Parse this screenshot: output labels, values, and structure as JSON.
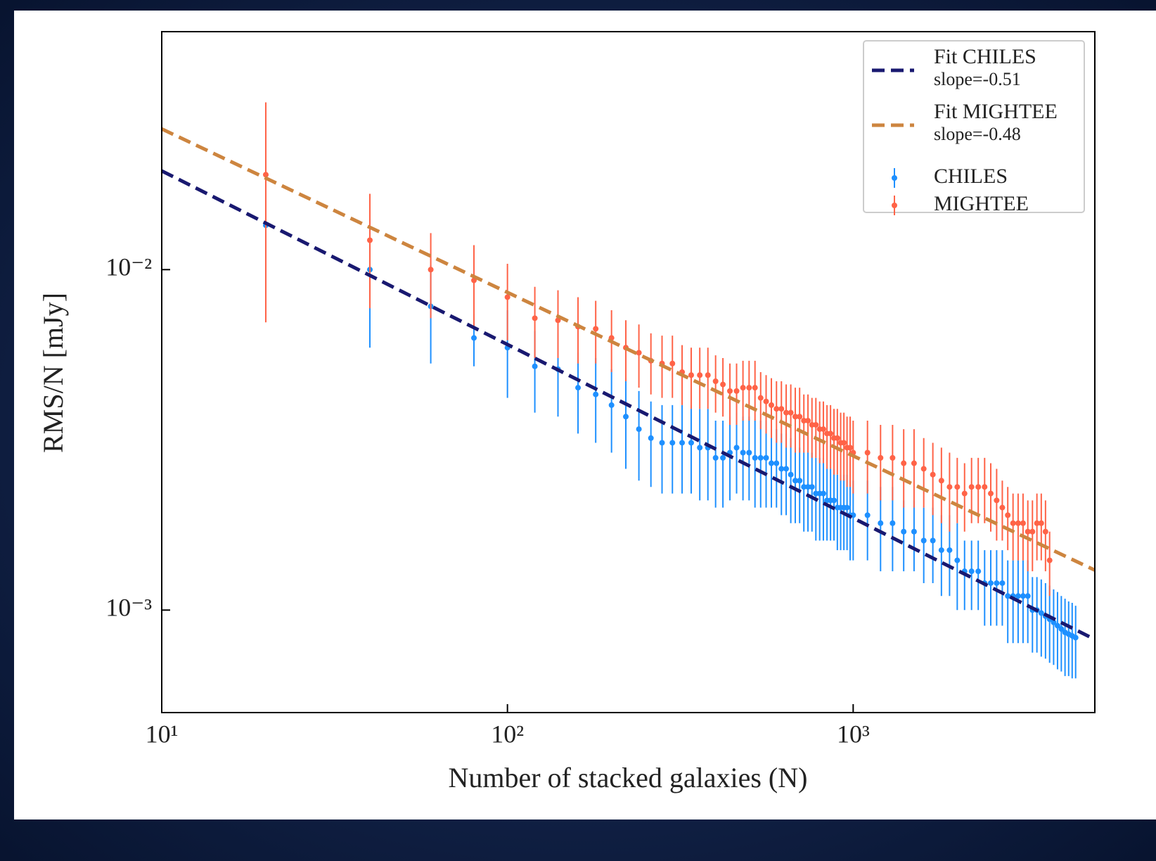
{
  "chart_data": {
    "type": "errorbar",
    "xlabel": "Number of stacked galaxies (N)",
    "ylabel": "RMS/N [mJy]",
    "xscale": "log",
    "yscale": "log",
    "xlim": [
      10,
      5000
    ],
    "ylim": [
      0.0005,
      0.05
    ],
    "xticks": [
      {
        "value": 10,
        "label": "10¹"
      },
      {
        "value": 100,
        "label": "10²"
      },
      {
        "value": 1000,
        "label": "10³"
      }
    ],
    "yticks": [
      {
        "value": 0.001,
        "label": "10⁻³"
      },
      {
        "value": 0.01,
        "label": "10⁻²"
      }
    ],
    "legend": "upper right",
    "fits": [
      {
        "name": "Fit CHILES",
        "subtext": "slope=-0.51",
        "color": "#191970",
        "x": [
          10,
          5000
        ],
        "values": [
          0.0195,
          0.00082
        ]
      },
      {
        "name": "Fit MIGHTEE",
        "subtext": "slope=-0.48",
        "color": "#cd853f",
        "x": [
          10,
          5000
        ],
        "values": [
          0.0259,
          0.00131
        ]
      }
    ],
    "series": [
      {
        "name": "CHILES",
        "color": "#1e90ff",
        "x": [
          20,
          40,
          60,
          80,
          100,
          120,
          140,
          160,
          180,
          200,
          220,
          240,
          260,
          280,
          300,
          320,
          340,
          360,
          380,
          400,
          420,
          440,
          460,
          480,
          500,
          520,
          540,
          560,
          580,
          600,
          620,
          640,
          660,
          680,
          700,
          720,
          740,
          760,
          780,
          800,
          820,
          840,
          860,
          880,
          900,
          920,
          940,
          960,
          980,
          1000,
          1100,
          1200,
          1300,
          1400,
          1500,
          1600,
          1700,
          1800,
          1900,
          2000,
          2100,
          2200,
          2300,
          2400,
          2500,
          2600,
          2700,
          2800,
          2900,
          3000,
          3100,
          3200,
          3300,
          3400,
          3500,
          3600,
          3700,
          3800,
          3900,
          4000,
          4100,
          4200,
          4300,
          4400
        ],
        "values": [
          0.0135,
          0.01,
          0.0078,
          0.0063,
          0.0059,
          0.0052,
          0.0051,
          0.0045,
          0.0043,
          0.004,
          0.0037,
          0.0034,
          0.0032,
          0.0031,
          0.0031,
          0.0031,
          0.0031,
          0.003,
          0.003,
          0.0028,
          0.0028,
          0.0029,
          0.003,
          0.0029,
          0.0029,
          0.0028,
          0.0028,
          0.0028,
          0.0027,
          0.0027,
          0.0026,
          0.0026,
          0.0025,
          0.0024,
          0.0024,
          0.0023,
          0.0023,
          0.0023,
          0.0022,
          0.0022,
          0.0022,
          0.0021,
          0.0021,
          0.0021,
          0.002,
          0.002,
          0.002,
          0.002,
          0.0019,
          0.0019,
          0.0019,
          0.0018,
          0.0018,
          0.0017,
          0.0017,
          0.0016,
          0.0016,
          0.0015,
          0.0015,
          0.0014,
          0.0013,
          0.0013,
          0.0013,
          0.0012,
          0.0012,
          0.0012,
          0.0012,
          0.0011,
          0.0011,
          0.0011,
          0.0011,
          0.0011,
          0.001,
          0.001,
          0.00098,
          0.00096,
          0.00094,
          0.00092,
          0.0009,
          0.00088,
          0.00086,
          0.00085,
          0.00084,
          0.00083
        ],
        "errors": [
          0.005,
          0.0041,
          0.0025,
          0.0011,
          0.0017,
          0.0014,
          0.0014,
          0.0012,
          0.0012,
          0.0011,
          0.0011,
          0.001,
          0.0009,
          0.0009,
          0.0009,
          0.0009,
          0.0009,
          0.0009,
          0.0009,
          0.0008,
          0.0008,
          0.0008,
          0.0008,
          0.0008,
          0.0008,
          0.0008,
          0.0008,
          0.0008,
          0.0007,
          0.0007,
          0.0007,
          0.0007,
          0.0007,
          0.0006,
          0.0006,
          0.0006,
          0.0006,
          0.0006,
          0.0006,
          0.0006,
          0.0006,
          0.0005,
          0.0005,
          0.0005,
          0.0005,
          0.0005,
          0.0005,
          0.0005,
          0.0005,
          0.0005,
          0.0005,
          0.0005,
          0.0005,
          0.0004,
          0.0004,
          0.0004,
          0.0004,
          0.0004,
          0.0004,
          0.0004,
          0.0003,
          0.0003,
          0.0003,
          0.0003,
          0.0003,
          0.0003,
          0.0003,
          0.0003,
          0.0003,
          0.0003,
          0.0003,
          0.0003,
          0.00025,
          0.00025,
          0.00025,
          0.00024,
          0.00024,
          0.00023,
          0.00023,
          0.00022,
          0.00022,
          0.00021,
          0.00021,
          0.0002
        ]
      },
      {
        "name": "MIGHTEE",
        "color": "#ff6347",
        "x": [
          20,
          40,
          60,
          80,
          100,
          120,
          140,
          160,
          180,
          200,
          220,
          240,
          260,
          280,
          300,
          320,
          340,
          360,
          380,
          400,
          420,
          440,
          460,
          480,
          500,
          520,
          540,
          560,
          580,
          600,
          620,
          640,
          660,
          680,
          700,
          720,
          740,
          760,
          780,
          800,
          820,
          840,
          860,
          880,
          900,
          920,
          940,
          960,
          980,
          1000,
          1100,
          1200,
          1300,
          1400,
          1500,
          1600,
          1700,
          1800,
          1900,
          2000,
          2100,
          2200,
          2300,
          2400,
          2500,
          2600,
          2700,
          2800,
          2900,
          3000,
          3100,
          3200,
          3300,
          3400,
          3500,
          3600,
          3700
        ],
        "values": [
          0.019,
          0.0122,
          0.01,
          0.0093,
          0.0083,
          0.0072,
          0.0071,
          0.0068,
          0.0067,
          0.0063,
          0.0059,
          0.0057,
          0.0054,
          0.0053,
          0.0053,
          0.005,
          0.0049,
          0.0049,
          0.0049,
          0.0047,
          0.0046,
          0.0044,
          0.0044,
          0.0045,
          0.0045,
          0.0045,
          0.0042,
          0.0041,
          0.004,
          0.0039,
          0.0039,
          0.0038,
          0.0038,
          0.0037,
          0.0037,
          0.0036,
          0.0036,
          0.0035,
          0.0035,
          0.0034,
          0.0034,
          0.0033,
          0.0033,
          0.0032,
          0.0032,
          0.0031,
          0.0031,
          0.003,
          0.003,
          0.0029,
          0.0029,
          0.0028,
          0.0028,
          0.0027,
          0.0027,
          0.0026,
          0.0025,
          0.0024,
          0.0023,
          0.0023,
          0.0022,
          0.0023,
          0.0023,
          0.0023,
          0.0022,
          0.0021,
          0.002,
          0.0019,
          0.0018,
          0.0018,
          0.0018,
          0.0017,
          0.0017,
          0.0018,
          0.0018,
          0.0017,
          0.0014
        ],
        "errors": [
          0.012,
          0.0045,
          0.0028,
          0.0025,
          0.0021,
          0.0017,
          0.0016,
          0.0015,
          0.0014,
          0.0013,
          0.0012,
          0.0012,
          0.0011,
          0.0011,
          0.0011,
          0.001,
          0.001,
          0.001,
          0.001,
          0.0009,
          0.0009,
          0.0009,
          0.0009,
          0.0009,
          0.0009,
          0.0009,
          0.0008,
          0.0008,
          0.0008,
          0.0008,
          0.0008,
          0.0008,
          0.0008,
          0.0008,
          0.0008,
          0.0007,
          0.0007,
          0.0007,
          0.0007,
          0.0007,
          0.0007,
          0.0007,
          0.0007,
          0.0007,
          0.0007,
          0.0007,
          0.0007,
          0.0007,
          0.0007,
          0.0007,
          0.0007,
          0.0007,
          0.0007,
          0.0007,
          0.0007,
          0.0006,
          0.0006,
          0.0006,
          0.0006,
          0.0005,
          0.0005,
          0.0005,
          0.0005,
          0.0005,
          0.0005,
          0.0005,
          0.0004,
          0.0004,
          0.0004,
          0.0004,
          0.0004,
          0.0004,
          0.0004,
          0.0004,
          0.0004,
          0.0004,
          0.0003
        ]
      }
    ]
  }
}
